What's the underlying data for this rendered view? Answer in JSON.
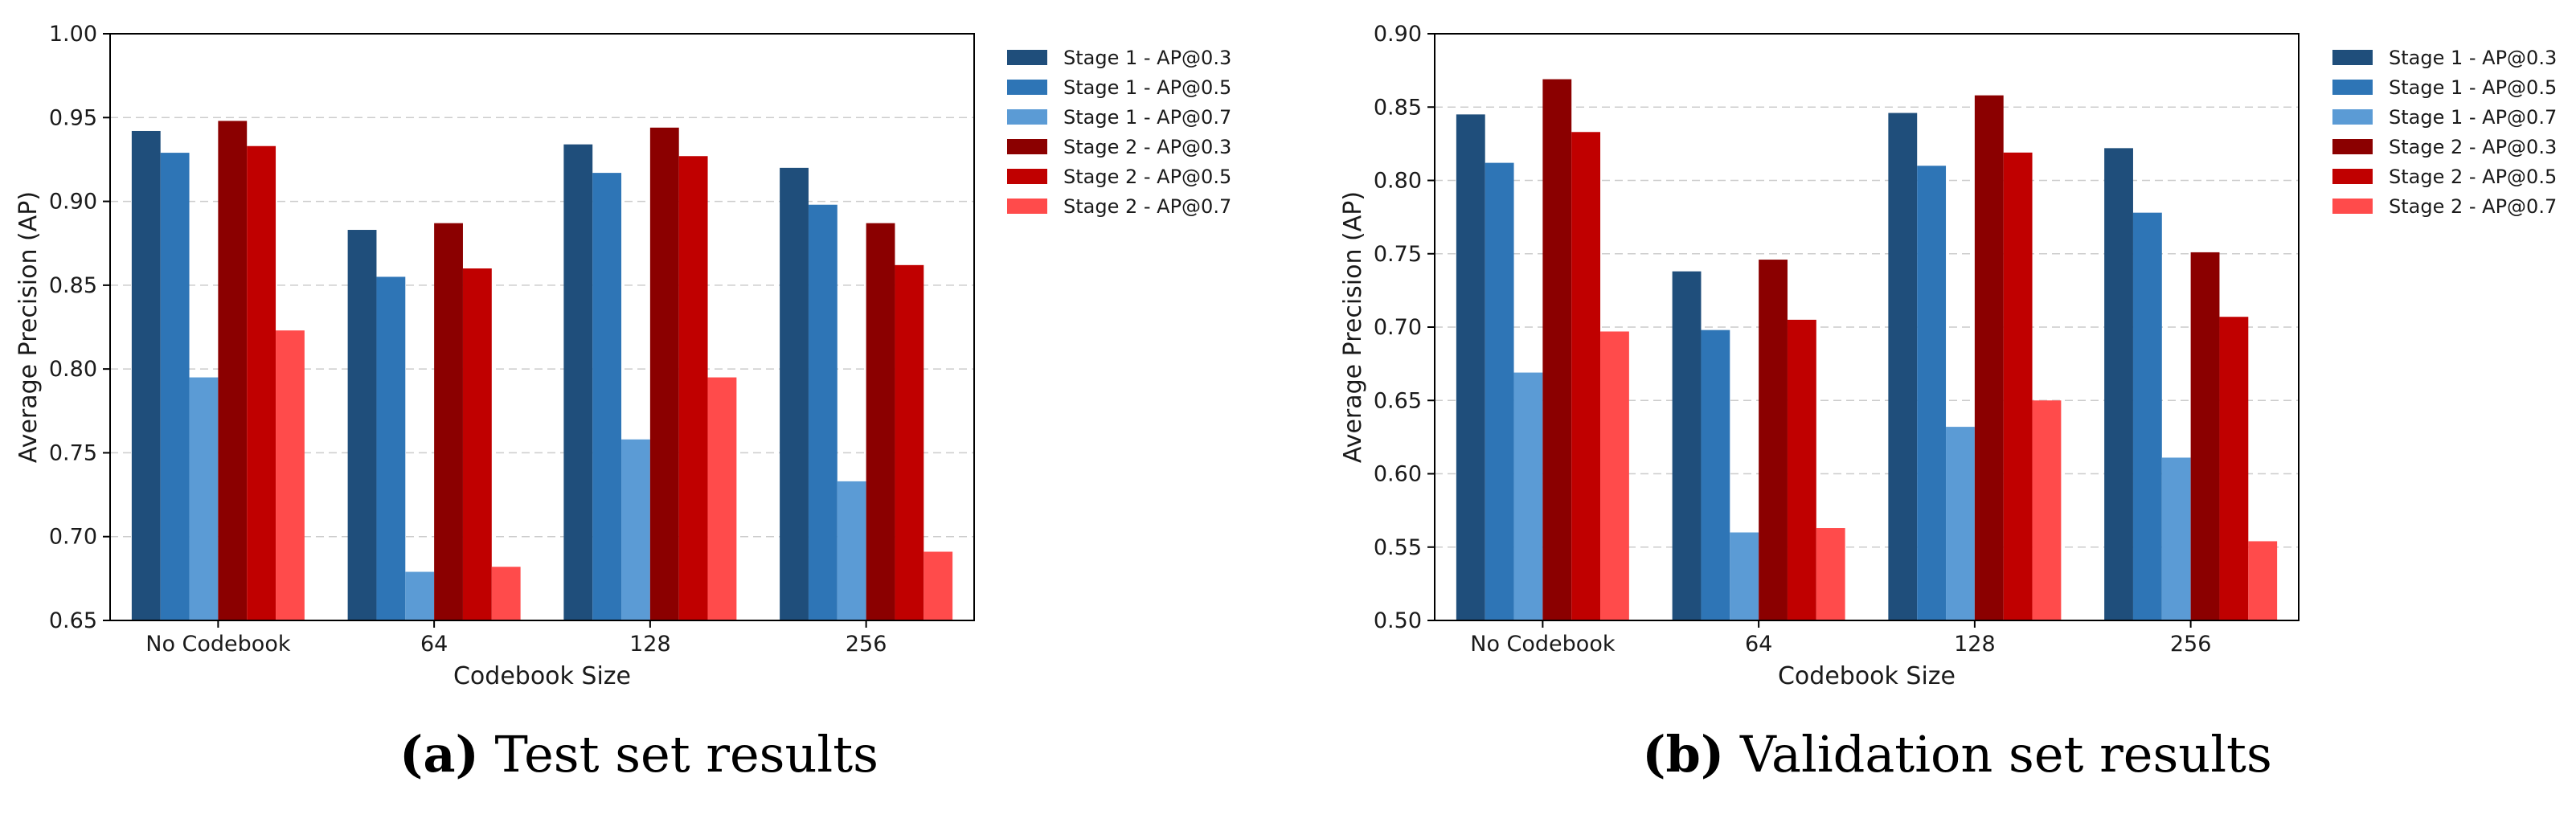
{
  "colors": {
    "Stage 1 - AP@0.3": "#1f4e7b",
    "Stage 1 - AP@0.5": "#2e75b6",
    "Stage 1 - AP@0.7": "#5b9bd5",
    "Stage 2 - AP@0.3": "#8b0000",
    "Stage 2 - AP@0.5": "#c00000",
    "Stage 2 - AP@0.7": "#ff4b4b"
  },
  "chart_data": [
    {
      "type": "bar",
      "caption_letter": "(a)",
      "caption": "Test set results",
      "xlabel": "Codebook Size",
      "ylabel": "Average Precision (AP)",
      "ylim": [
        0.65,
        1.0
      ],
      "yticks": [
        "0.65",
        "0.70",
        "0.75",
        "0.80",
        "0.85",
        "0.90",
        "0.95",
        "1.00"
      ],
      "grid": true,
      "legend_position": "right",
      "categories": [
        "No Codebook",
        "64",
        "128",
        "256"
      ],
      "series": [
        {
          "name": "Stage 1 - AP@0.3",
          "values": [
            0.942,
            0.883,
            0.934,
            0.92
          ]
        },
        {
          "name": "Stage 1 - AP@0.5",
          "values": [
            0.929,
            0.855,
            0.917,
            0.898
          ]
        },
        {
          "name": "Stage 1 - AP@0.7",
          "values": [
            0.795,
            0.679,
            0.758,
            0.733
          ]
        },
        {
          "name": "Stage 2 - AP@0.3",
          "values": [
            0.948,
            0.887,
            0.944,
            0.887
          ]
        },
        {
          "name": "Stage 2 - AP@0.5",
          "values": [
            0.933,
            0.86,
            0.927,
            0.862
          ]
        },
        {
          "name": "Stage 2 - AP@0.7",
          "values": [
            0.823,
            0.682,
            0.795,
            0.691
          ]
        }
      ]
    },
    {
      "type": "bar",
      "caption_letter": "(b)",
      "caption": "Validation set results",
      "xlabel": "Codebook Size",
      "ylabel": "Average Precision (AP)",
      "ylim": [
        0.5,
        0.9
      ],
      "yticks": [
        "0.50",
        "0.55",
        "0.60",
        "0.65",
        "0.70",
        "0.75",
        "0.80",
        "0.85",
        "0.90"
      ],
      "grid": true,
      "legend_position": "right",
      "categories": [
        "No Codebook",
        "64",
        "128",
        "256"
      ],
      "series": [
        {
          "name": "Stage 1 - AP@0.3",
          "values": [
            0.845,
            0.738,
            0.846,
            0.822
          ]
        },
        {
          "name": "Stage 1 - AP@0.5",
          "values": [
            0.812,
            0.698,
            0.81,
            0.778
          ]
        },
        {
          "name": "Stage 1 - AP@0.7",
          "values": [
            0.669,
            0.56,
            0.632,
            0.611
          ]
        },
        {
          "name": "Stage 2 - AP@0.3",
          "values": [
            0.869,
            0.746,
            0.858,
            0.751
          ]
        },
        {
          "name": "Stage 2 - AP@0.5",
          "values": [
            0.833,
            0.705,
            0.819,
            0.707
          ]
        },
        {
          "name": "Stage 2 - AP@0.7",
          "values": [
            0.697,
            0.563,
            0.65,
            0.554
          ]
        }
      ]
    }
  ]
}
